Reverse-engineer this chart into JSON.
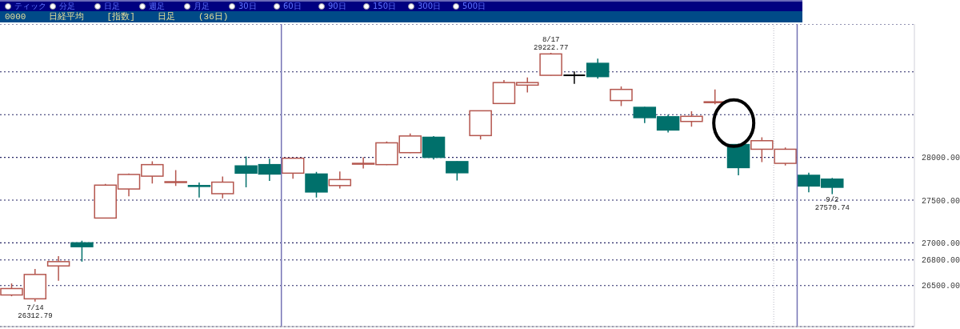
{
  "chart_data": {
    "type": "candlestick",
    "title": "0000 日経平均 [指数] 日足 (36日)",
    "annotations": [
      "ティック",
      "分足",
      "日足",
      "週足",
      "月足",
      "30日",
      "60日",
      "90日",
      "150日",
      "300日",
      "500日",
      {
        "text": "7/14\n26312.79",
        "y": 26312.79
      },
      {
        "text": "8/17\n29222.77",
        "y": 29222.77
      },
      {
        "text": "9/2\n27570.74",
        "y": 27570.74
      }
    ],
    "categories": [
      null,
      null,
      null,
      null,
      null,
      null,
      null,
      null,
      null,
      null,
      null,
      null,
      null,
      null,
      null,
      null,
      null,
      null,
      null,
      null,
      null,
      null,
      null,
      null,
      null,
      null,
      null,
      null,
      null,
      null,
      null,
      null,
      null,
      null,
      null,
      null,
      null,
      null,
      null
    ],
    "ohlc": [
      [
        26390,
        26525,
        26375,
        26465
      ],
      [
        26345,
        26695,
        26312.79,
        26630
      ],
      [
        26730,
        26845,
        26555,
        26780
      ],
      [
        27000,
        27025,
        26780,
        26955
      ],
      [
        27290,
        27690,
        27285,
        27675
      ],
      [
        27630,
        27810,
        27545,
        27800
      ],
      [
        27780,
        27955,
        27695,
        27915
      ],
      [
        27710,
        27850,
        27665,
        27715
      ],
      [
        27670,
        27705,
        27530,
        27660
      ],
      [
        27575,
        27775,
        27520,
        27710
      ],
      [
        27900,
        28010,
        27650,
        27815
      ],
      [
        27915,
        27985,
        27725,
        27805
      ],
      [
        27815,
        27995,
        27750,
        27990
      ],
      [
        27805,
        27830,
        27530,
        27595
      ],
      [
        27670,
        27835,
        27635,
        27740
      ],
      [
        27925,
        28000,
        27870,
        27930
      ],
      [
        27915,
        28185,
        27910,
        28170
      ],
      [
        28055,
        28280,
        28050,
        28250
      ],
      [
        28235,
        28250,
        27975,
        28000
      ],
      [
        27950,
        27955,
        27730,
        27820
      ],
      [
        28255,
        28545,
        28210,
        28545
      ],
      [
        28630,
        28905,
        28630,
        28875
      ],
      [
        28845,
        28935,
        28760,
        28875
      ],
      [
        28960,
        29222.77,
        28955,
        29210
      ],
      [
        28960,
        29005,
        28860,
        28960
      ],
      [
        29100,
        29155,
        28920,
        28945
      ],
      [
        28665,
        28830,
        28600,
        28795
      ],
      [
        28585,
        28590,
        28400,
        28465
      ],
      [
        28475,
        28500,
        28290,
        28320
      ],
      [
        28420,
        28540,
        28360,
        28480
      ],
      [
        28645,
        28795,
        28620,
        28650
      ],
      [
        28150,
        28160,
        27790,
        27880
      ],
      [
        28095,
        28235,
        27945,
        28195
      ],
      [
        27930,
        28115,
        27905,
        28095
      ],
      [
        27790,
        27820,
        27590,
        27665
      ],
      [
        27745,
        27760,
        27570.74,
        27650
      ],
      null,
      null,
      null
    ],
    "colors": [
      "#b4564e",
      "#b4564e",
      "#b4564e",
      "#00706b",
      "#b4564e",
      "#b4564e",
      "#b4564e",
      "#b4564e",
      "#00706b",
      "#b4564e",
      "#00706b",
      "#00706b",
      "#b4564e",
      "#00706b",
      "#b4564e",
      "#b4564e",
      "#b4564e",
      "#b4564e",
      "#00706b",
      "#00706b",
      "#b4564e",
      "#b4564e",
      "#b4564e",
      "#b4564e",
      "#000000",
      "#00706b",
      "#b4564e",
      "#00706b",
      "#00706b",
      "#b4564e",
      "#b4564e",
      "#00706b",
      "#b4564e",
      "#b4564e",
      "#00706b",
      "#00706b",
      null,
      null,
      null
    ],
    "ylim": [
      26020,
      29560
    ],
    "yticks": [
      {
        "value": 26500,
        "label": "26500.00"
      },
      {
        "value": 26800,
        "label": "26800.00"
      },
      {
        "value": 27000,
        "label": "27000.00"
      },
      {
        "value": 27500,
        "label": "27500.00"
      },
      {
        "value": 28000,
        "label": "28000.00"
      },
      {
        "value": 28500,
        "label": null
      },
      {
        "value": 29000,
        "label": null
      }
    ],
    "grid": "y"
  }
}
